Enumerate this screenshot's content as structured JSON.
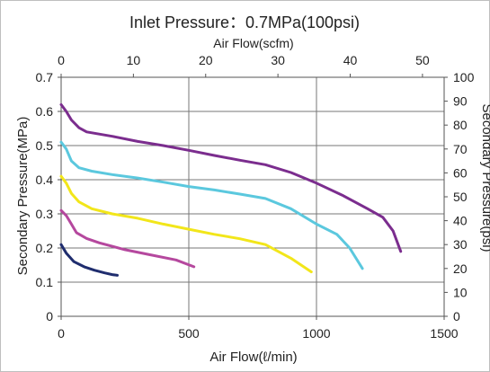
{
  "chart_data": {
    "type": "line",
    "title": "Inlet Pressure：0.7MPa(100psi)",
    "xlabel": "Air Flow(ℓ/min)",
    "x2label": "Air Flow(scfm)",
    "ylabel": "Secondary Pressure(MPa)",
    "y2label": "Secondary Pressure(psi)",
    "xlim": [
      0,
      1500
    ],
    "ylim": [
      0,
      0.7
    ],
    "x2lim": [
      0,
      53
    ],
    "y2lim": [
      0,
      100
    ],
    "xticks": [
      "0",
      "500",
      "1000",
      "1500"
    ],
    "yticks": [
      "0",
      "0.1",
      "0.2",
      "0.3",
      "0.4",
      "0.5",
      "0.6",
      "0.7"
    ],
    "x2ticks": [
      "0",
      "10",
      "20",
      "30",
      "40",
      "50"
    ],
    "y2ticks": [
      "0",
      "10",
      "20",
      "30",
      "40",
      "50",
      "60",
      "70",
      "80",
      "90",
      "100"
    ],
    "grid": true,
    "series": [
      {
        "color": "#1f2d6e",
        "x": [
          0,
          20,
          50,
          90,
          130,
          170,
          200,
          220
        ],
        "y": [
          0.21,
          0.185,
          0.16,
          0.145,
          0.135,
          0.127,
          0.122,
          0.12
        ]
      },
      {
        "color": "#b5489e",
        "x": [
          0,
          20,
          40,
          60,
          100,
          150,
          250,
          350,
          450,
          520
        ],
        "y": [
          0.31,
          0.295,
          0.27,
          0.245,
          0.228,
          0.215,
          0.195,
          0.18,
          0.165,
          0.145
        ]
      },
      {
        "color": "#f2e61a",
        "x": [
          0,
          20,
          40,
          70,
          120,
          200,
          300,
          400,
          500,
          600,
          700,
          800,
          900,
          980
        ],
        "y": [
          0.41,
          0.39,
          0.36,
          0.335,
          0.315,
          0.3,
          0.287,
          0.27,
          0.255,
          0.24,
          0.227,
          0.21,
          0.17,
          0.13
        ]
      },
      {
        "color": "#5bc8de",
        "x": [
          0,
          20,
          40,
          70,
          120,
          200,
          300,
          400,
          500,
          600,
          700,
          800,
          900,
          1000,
          1080,
          1130,
          1180
        ],
        "y": [
          0.51,
          0.49,
          0.455,
          0.435,
          0.425,
          0.415,
          0.405,
          0.393,
          0.38,
          0.37,
          0.358,
          0.345,
          0.315,
          0.27,
          0.24,
          0.2,
          0.14
        ]
      },
      {
        "color": "#7b2d8e",
        "x": [
          0,
          20,
          40,
          70,
          100,
          200,
          300,
          400,
          500,
          600,
          700,
          800,
          900,
          1000,
          1100,
          1200,
          1260,
          1300,
          1330
        ],
        "y": [
          0.62,
          0.6,
          0.575,
          0.552,
          0.54,
          0.527,
          0.512,
          0.5,
          0.486,
          0.471,
          0.457,
          0.444,
          0.421,
          0.39,
          0.355,
          0.315,
          0.29,
          0.25,
          0.19
        ]
      }
    ]
  }
}
